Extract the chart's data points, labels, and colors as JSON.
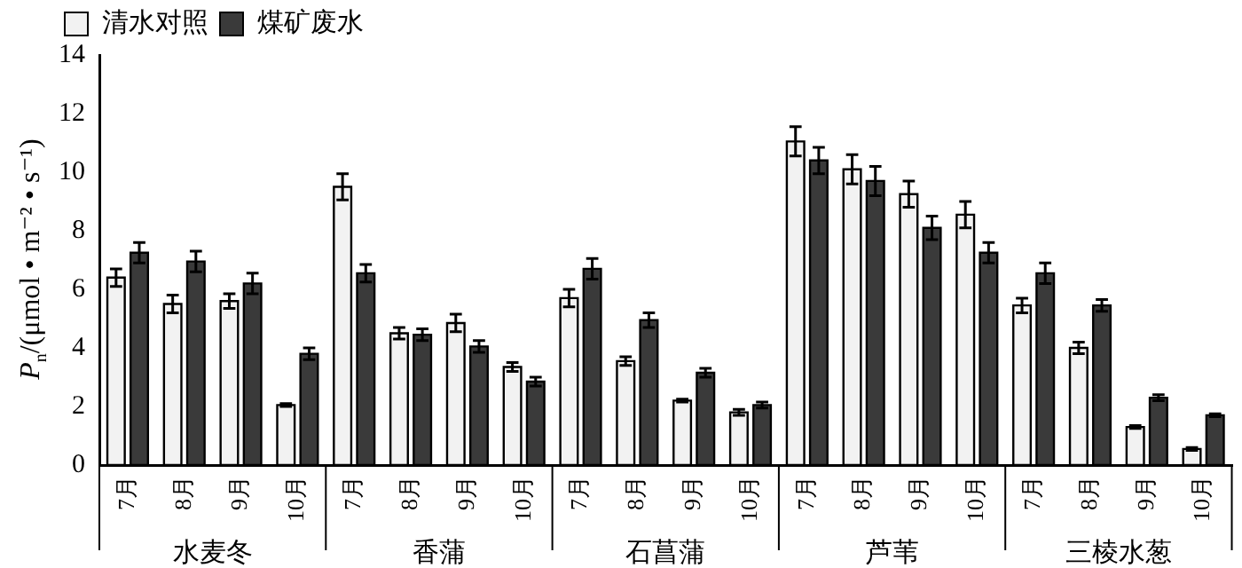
{
  "chart_data": {
    "type": "bar",
    "ylabel": "P$_{n}$/(μmol • m⁻² • s⁻¹)",
    "categories": [
      "7月",
      "8月",
      "9月",
      "10月",
      "7月",
      "8月",
      "9月",
      "10月",
      "7月",
      "8月",
      "9月",
      "10月",
      "7月",
      "8月",
      "9月",
      "10月",
      "7月",
      "8月",
      "9月",
      "10月"
    ],
    "annotations": [
      "水麦冬",
      "香蒲",
      "石菖蒲",
      "芦苇",
      "三棱水葱"
    ],
    "series": [
      {
        "name": "清水对照",
        "color": "#f2f2f2",
        "values": [
          6.4,
          5.5,
          5.6,
          2.05,
          9.5,
          4.5,
          4.85,
          3.35,
          5.7,
          3.55,
          2.2,
          1.8,
          11.05,
          10.1,
          9.25,
          8.55,
          5.45,
          4.0,
          1.3,
          0.55
        ],
        "errors": [
          0.3,
          0.3,
          0.25,
          0.05,
          0.45,
          0.2,
          0.3,
          0.15,
          0.3,
          0.15,
          0.05,
          0.1,
          0.5,
          0.5,
          0.45,
          0.45,
          0.25,
          0.2,
          0.05,
          0.05
        ]
      },
      {
        "name": "煤矿废水",
        "color": "#3a3a3a",
        "values": [
          7.25,
          6.95,
          6.2,
          3.8,
          6.55,
          4.45,
          4.05,
          2.85,
          6.7,
          4.95,
          3.15,
          2.05,
          10.4,
          9.7,
          8.1,
          7.25,
          6.55,
          5.45,
          2.3,
          1.7
        ],
        "errors": [
          0.35,
          0.35,
          0.35,
          0.2,
          0.3,
          0.2,
          0.2,
          0.15,
          0.35,
          0.25,
          0.15,
          0.1,
          0.45,
          0.5,
          0.4,
          0.35,
          0.35,
          0.2,
          0.1,
          0.05
        ]
      }
    ],
    "ylim": [
      0,
      14
    ],
    "yticks": [
      0,
      2,
      4,
      6,
      8,
      10,
      12,
      14
    ],
    "grid": false,
    "legend": "top"
  }
}
